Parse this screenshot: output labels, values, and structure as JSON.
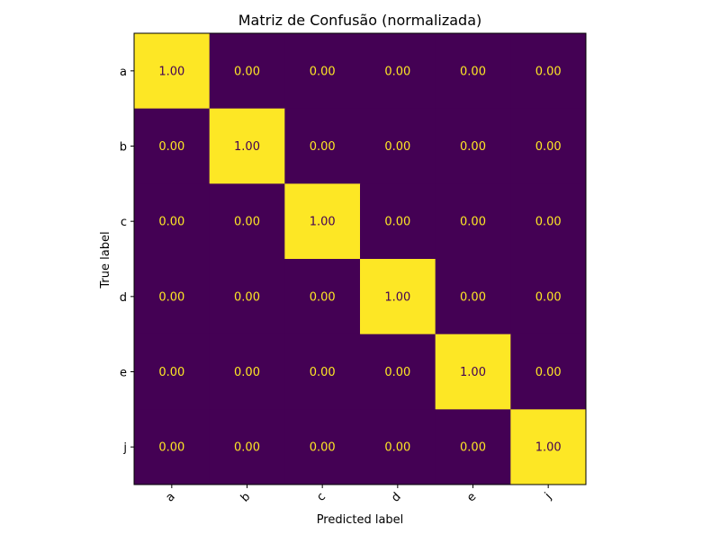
{
  "chart_data": {
    "type": "heatmap",
    "title": "Matriz de Confusão (normalizada)",
    "xlabel": "Predicted label",
    "ylabel": "True label",
    "x_categories": [
      "a",
      "b",
      "c",
      "d",
      "e",
      "j"
    ],
    "y_categories": [
      "a",
      "b",
      "c",
      "d",
      "e",
      "j"
    ],
    "values": [
      [
        1.0,
        0.0,
        0.0,
        0.0,
        0.0,
        0.0
      ],
      [
        0.0,
        1.0,
        0.0,
        0.0,
        0.0,
        0.0
      ],
      [
        0.0,
        0.0,
        1.0,
        0.0,
        0.0,
        0.0
      ],
      [
        0.0,
        0.0,
        0.0,
        1.0,
        0.0,
        0.0
      ],
      [
        0.0,
        0.0,
        0.0,
        0.0,
        1.0,
        0.0
      ],
      [
        0.0,
        0.0,
        0.0,
        0.0,
        0.0,
        1.0
      ]
    ],
    "value_format": "2 decimals",
    "vlim": [
      0,
      1
    ],
    "colormap": "viridis",
    "colors": {
      "low": "#440154",
      "high": "#fde725",
      "text_on_low": "#fde725",
      "text_on_high": "#440154"
    },
    "x_tick_rotation": "45 degrees",
    "colorbar": false,
    "grid": false
  }
}
